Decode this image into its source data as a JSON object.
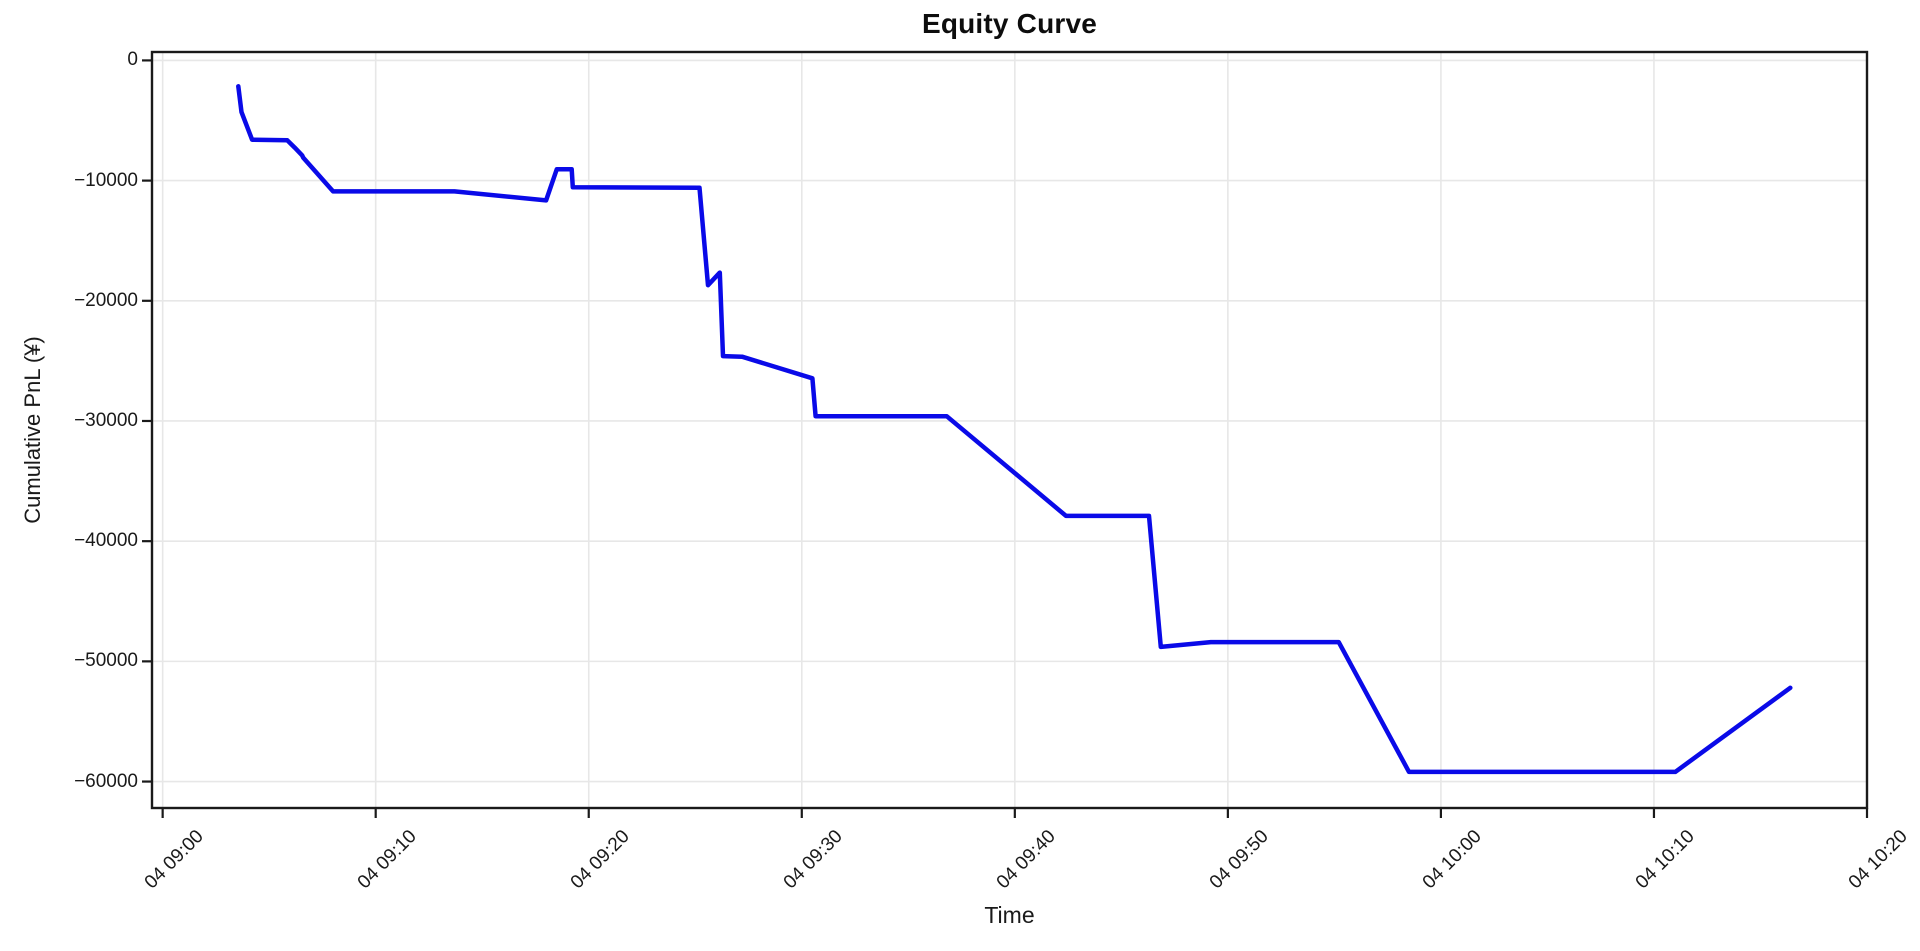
{
  "chart_data": {
    "type": "line",
    "title": "Equity Curve",
    "xlabel": "Time",
    "ylabel": "Cumulative PnL (¥)",
    "grid": true,
    "legend": "none",
    "x_unit": "minutes after 09:00 on day 04",
    "xlim": [
      -0.5,
      80.0
    ],
    "ylim": [
      -62200,
      700
    ],
    "x_ticks": [
      {
        "minute": 0,
        "label": "04 09:00"
      },
      {
        "minute": 10,
        "label": "04 09:10"
      },
      {
        "minute": 20,
        "label": "04 09:20"
      },
      {
        "minute": 30,
        "label": "04 09:30"
      },
      {
        "minute": 40,
        "label": "04 09:40"
      },
      {
        "minute": 50,
        "label": "04 09:50"
      },
      {
        "minute": 60,
        "label": "04 10:00"
      },
      {
        "minute": 70,
        "label": "04 10:10"
      },
      {
        "minute": 80,
        "label": "04 10:20"
      }
    ],
    "y_ticks": [
      {
        "value": 0,
        "label": "0"
      },
      {
        "value": -10000,
        "label": "−10000"
      },
      {
        "value": -20000,
        "label": "−20000"
      },
      {
        "value": -30000,
        "label": "−30000"
      },
      {
        "value": -40000,
        "label": "−40000"
      },
      {
        "value": -50000,
        "label": "−50000"
      },
      {
        "value": -60000,
        "label": "−60000"
      }
    ],
    "series": [
      {
        "name": "Cumulative PnL",
        "color": "#0a0ae8",
        "points": [
          [
            3.55,
            -2150
          ],
          [
            3.7,
            -4300
          ],
          [
            4.2,
            -6600
          ],
          [
            5.85,
            -6650
          ],
          [
            6.2,
            -7250
          ],
          [
            6.55,
            -7900
          ],
          [
            6.6,
            -8100
          ],
          [
            8.0,
            -10900
          ],
          [
            13.7,
            -10900
          ],
          [
            18.0,
            -11650
          ],
          [
            18.5,
            -9050
          ],
          [
            19.2,
            -9050
          ],
          [
            19.25,
            -10550
          ],
          [
            25.2,
            -10600
          ],
          [
            25.6,
            -18700
          ],
          [
            26.15,
            -17650
          ],
          [
            26.3,
            -24600
          ],
          [
            27.2,
            -24650
          ],
          [
            30.5,
            -26450
          ],
          [
            30.65,
            -29600
          ],
          [
            36.8,
            -29600
          ],
          [
            42.4,
            -37900
          ],
          [
            46.3,
            -37900
          ],
          [
            46.85,
            -48800
          ],
          [
            49.2,
            -48400
          ],
          [
            55.2,
            -48400
          ],
          [
            58.5,
            -59200
          ],
          [
            71.0,
            -59200
          ],
          [
            76.4,
            -52200
          ]
        ]
      }
    ]
  },
  "colors": {
    "background": "#ffffff",
    "grid": "#e7e7e7",
    "spine": "#1a1a1a",
    "tick": "#1a1a1a",
    "text": "#1a1a1a",
    "line": "#0a0ae8"
  }
}
